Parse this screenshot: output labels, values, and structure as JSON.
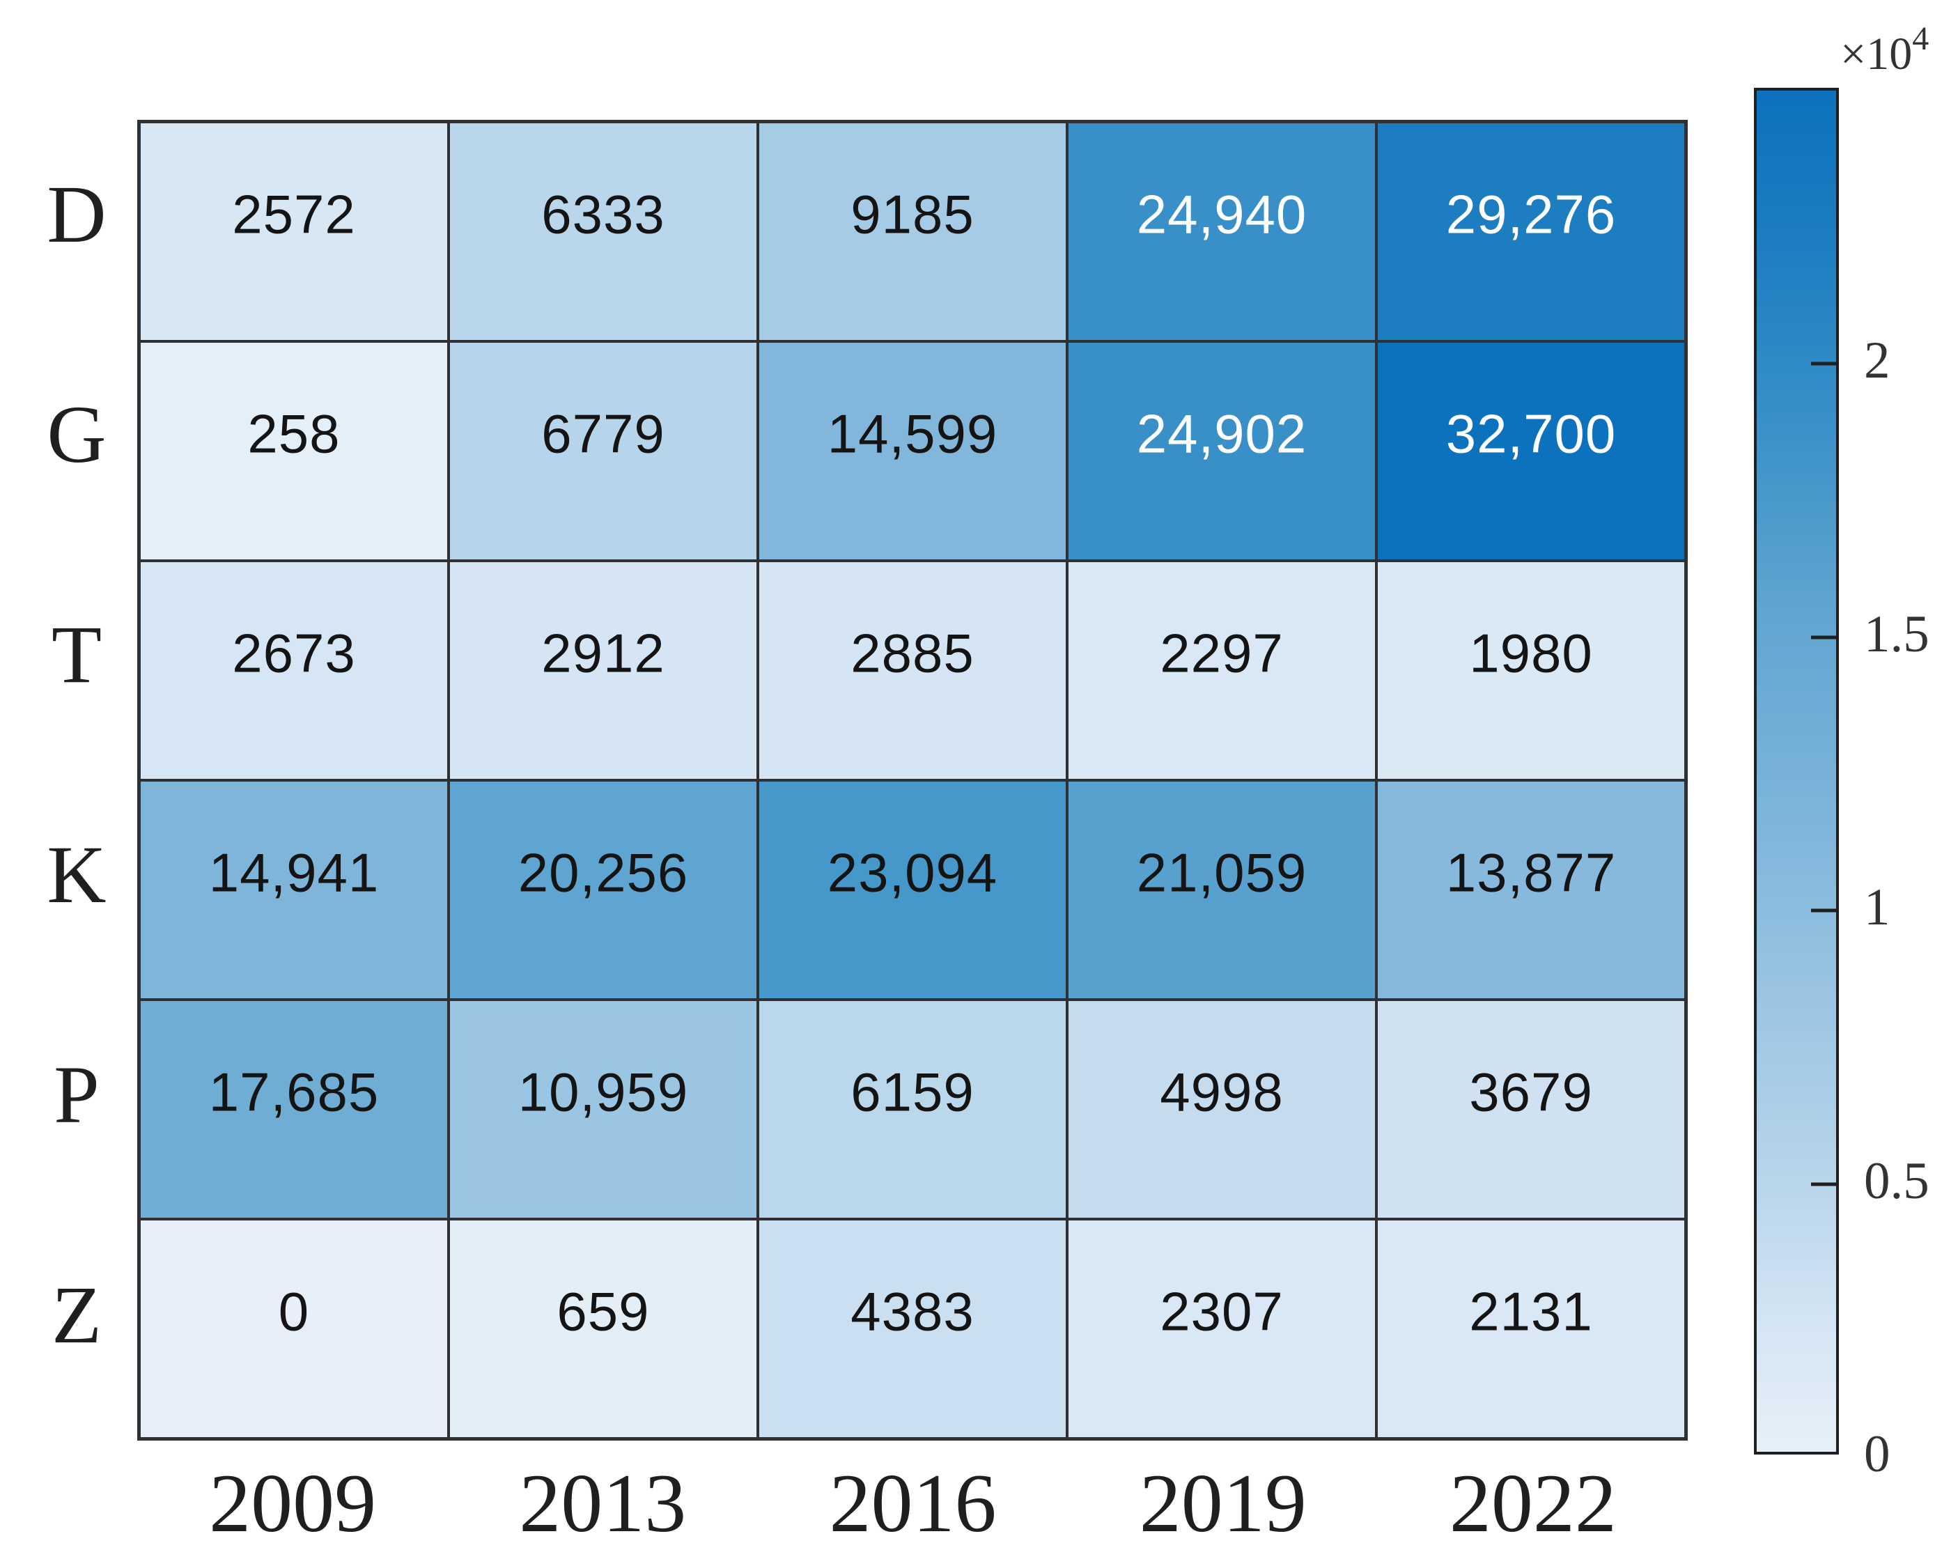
{
  "chart_data": {
    "type": "heatmap",
    "rows": [
      "D",
      "G",
      "T",
      "K",
      "P",
      "Z"
    ],
    "columns": [
      "2009",
      "2013",
      "2016",
      "2019",
      "2022"
    ],
    "values": [
      [
        2572,
        6333,
        9185,
        24940,
        29276
      ],
      [
        258,
        6779,
        14599,
        24902,
        32700
      ],
      [
        2673,
        2912,
        2885,
        2297,
        1980
      ],
      [
        14941,
        20256,
        23094,
        21059,
        13877
      ],
      [
        17685,
        10959,
        6159,
        4998,
        3679
      ],
      [
        0,
        659,
        4383,
        2307,
        2131
      ]
    ],
    "cell_labels": [
      [
        "2572",
        "6333",
        "9185",
        "24,940",
        "29,276"
      ],
      [
        "258",
        "6779",
        "14,599",
        "24,902",
        "32,700"
      ],
      [
        "2673",
        "2912",
        "2885",
        "2297",
        "1980"
      ],
      [
        "14,941",
        "20,256",
        "23,094",
        "21,059",
        "13,877"
      ],
      [
        "17,685",
        "10,959",
        "6159",
        "4998",
        "3679"
      ],
      [
        "0",
        "659",
        "4383",
        "2307",
        "2131"
      ]
    ],
    "vmin": 0,
    "vmax": 32700,
    "white_text_threshold": 24000,
    "colormap_stops": [
      [
        0.0,
        "#e7f0f8"
      ],
      [
        0.1,
        "#d3e4f3"
      ],
      [
        0.2,
        "#b8d5ea"
      ],
      [
        0.3,
        "#a2c9e5"
      ],
      [
        0.46,
        "#7fb5da"
      ],
      [
        0.62,
        "#5fa5d1"
      ],
      [
        0.71,
        "#4697ca"
      ],
      [
        0.8,
        "#2f8ac5"
      ],
      [
        0.9,
        "#1b7cc1"
      ],
      [
        1.0,
        "#0c72bd"
      ]
    ],
    "colorbar": {
      "scale_label": "×10",
      "scale_exponent": "4",
      "tick_labels": [
        "0",
        "0.5",
        "1",
        "1.5",
        "2"
      ],
      "tick_values": [
        0,
        0.5,
        1,
        1.5,
        2
      ],
      "tick_unit": 10000,
      "axis_max": 25000
    },
    "grid_line_color": "#2e3033",
    "text_color_dark": "#141414",
    "text_color_light": "#ffffff",
    "legend_position": "right",
    "title": "",
    "xlabel": "",
    "ylabel": ""
  }
}
